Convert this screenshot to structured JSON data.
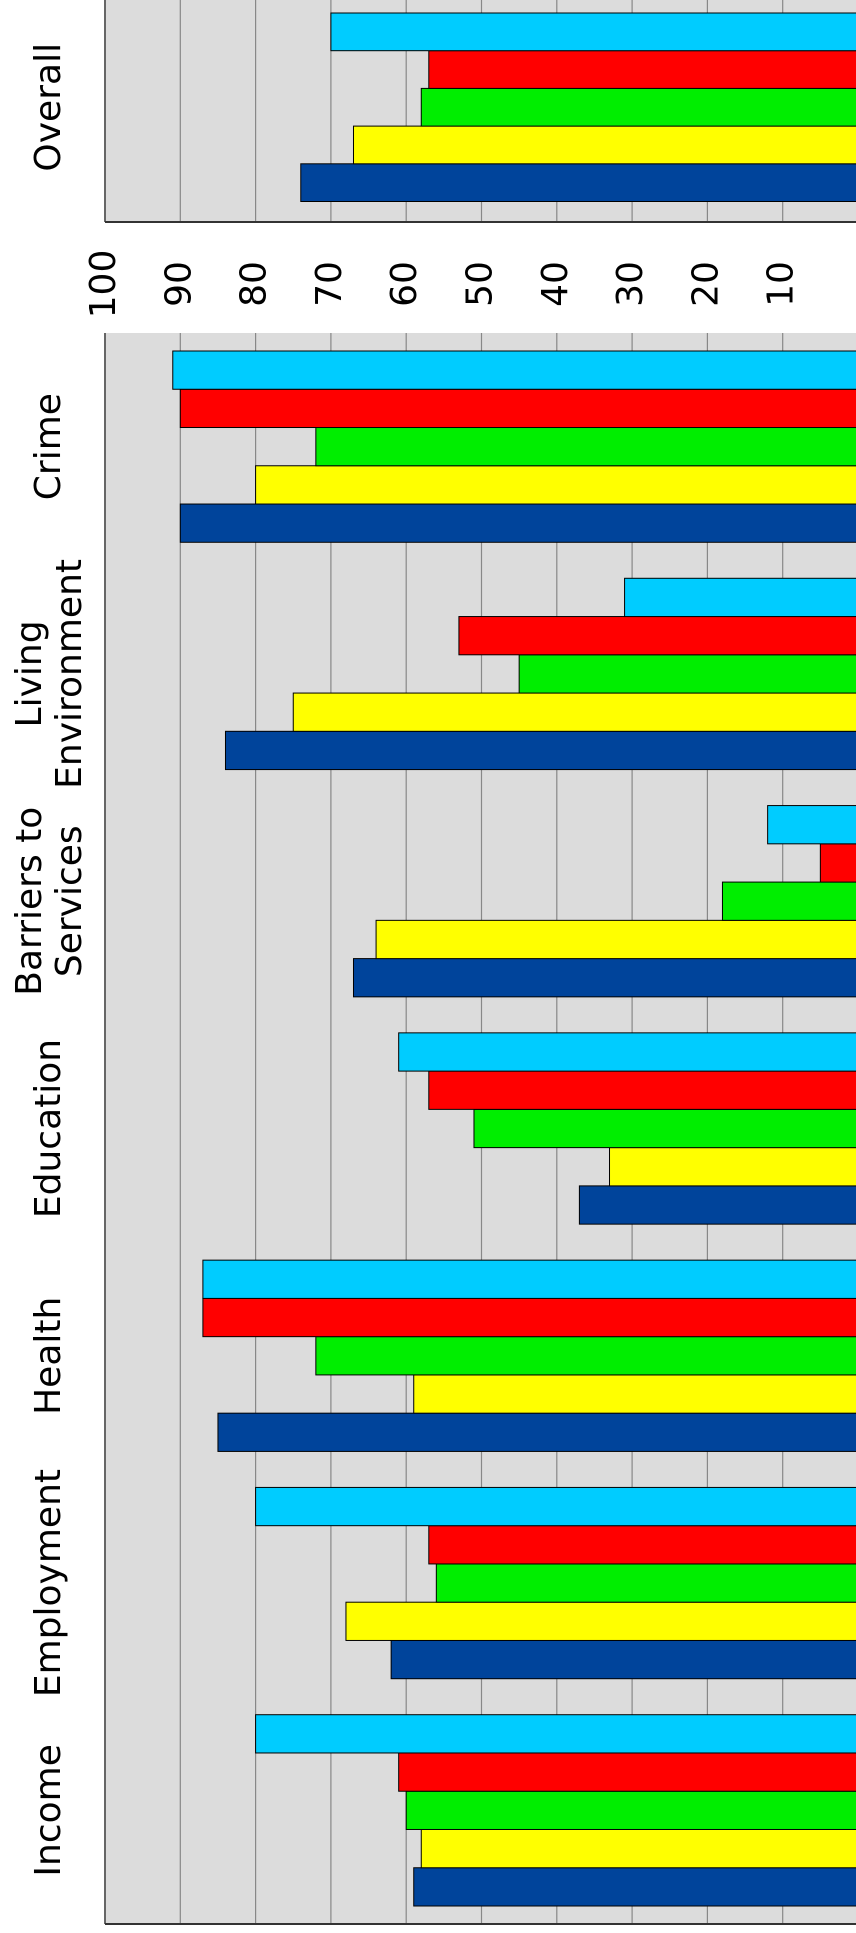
{
  "chart_data": [
    {
      "type": "bar",
      "orientation": "rotated",
      "categories": [
        "Overall"
      ],
      "series": [
        {
          "color": "#00449b",
          "values": [
            74
          ]
        },
        {
          "color": "#ffff00",
          "values": [
            67
          ]
        },
        {
          "color": "#00ee00",
          "values": [
            58
          ]
        },
        {
          "color": "#ff0000",
          "values": [
            57
          ]
        },
        {
          "color": "#00ccff",
          "values": [
            70
          ]
        }
      ],
      "xlim": [
        0,
        100
      ],
      "grid": true
    },
    {
      "type": "bar",
      "orientation": "rotated",
      "categories": [
        "Income",
        "Employment",
        "Health",
        "Education",
        "Barriers to Services",
        "Living Environment",
        "Crime"
      ],
      "series": [
        {
          "color": "#00449b",
          "values": [
            59,
            62,
            85,
            37,
            67,
            84,
            90
          ]
        },
        {
          "color": "#ffff00",
          "values": [
            58,
            68,
            59,
            33,
            64,
            75,
            80
          ]
        },
        {
          "color": "#00ee00",
          "values": [
            60,
            56,
            72,
            51,
            18,
            45,
            72
          ]
        },
        {
          "color": "#ff0000",
          "values": [
            61,
            57,
            87,
            57,
            5,
            53,
            90
          ]
        },
        {
          "color": "#00ccff",
          "values": [
            80,
            80,
            87,
            61,
            12,
            31,
            91
          ]
        }
      ],
      "xlim": [
        0,
        100
      ],
      "xticks": [
        10,
        20,
        30,
        40,
        50,
        60,
        70,
        80,
        90,
        100
      ],
      "grid": true
    }
  ]
}
